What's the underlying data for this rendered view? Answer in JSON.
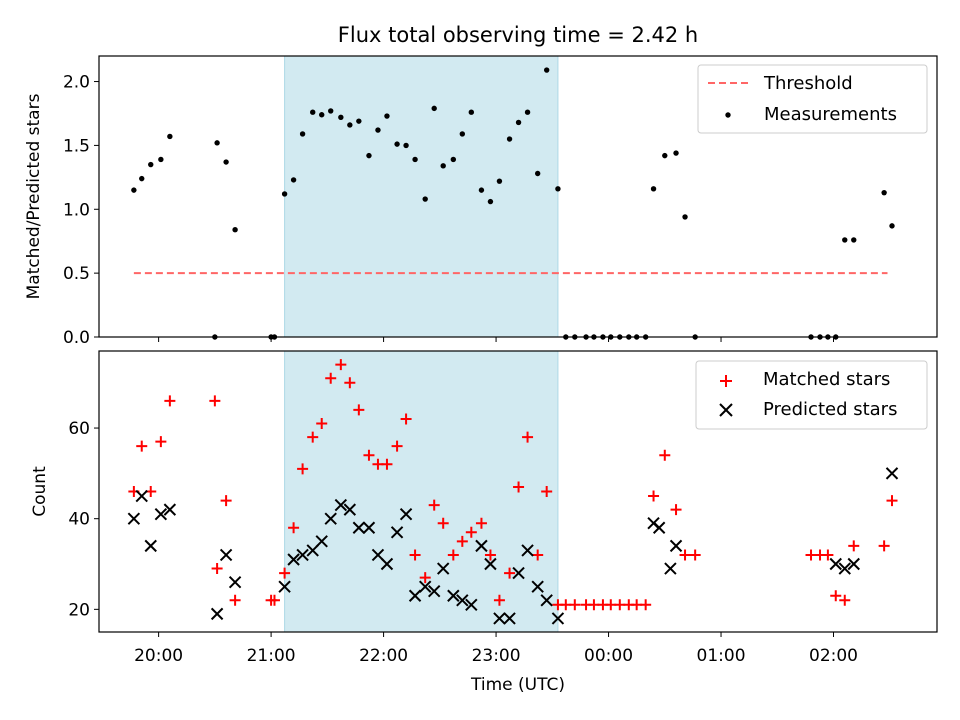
{
  "chart_data": [
    {
      "type": "scatter",
      "title": "Flux total observing time = 2.42 h",
      "xlabel": "",
      "ylabel": "Matched/Predicted stars",
      "xlim": [
        19.47,
        26.92
      ],
      "ylim": [
        0,
        2.2
      ],
      "yticks": [
        0.0,
        0.5,
        1.0,
        1.5,
        2.0
      ],
      "yticklabels": [
        "0.0",
        "0.5",
        "1.0",
        "1.5",
        "2.0"
      ],
      "shaded_interval": [
        21.12,
        23.55
      ],
      "shade_color": "#add8e6",
      "legend": {
        "position": "top-right",
        "threshold_label": "Threshold",
        "measurements_label": "Measurements"
      },
      "threshold": {
        "name": "Threshold",
        "x": [
          19.78,
          26.48
        ],
        "y": 0.5,
        "color": "#ff6666",
        "style": "dashed"
      },
      "measurements": {
        "name": "Measurements",
        "color": "#000000",
        "x": [
          19.78,
          19.85,
          19.93,
          20.02,
          20.1,
          20.5,
          20.52,
          20.6,
          20.68,
          21.0,
          21.03,
          21.12,
          21.2,
          21.28,
          21.37,
          21.45,
          21.53,
          21.62,
          21.7,
          21.78,
          21.87,
          21.95,
          22.03,
          22.12,
          22.2,
          22.28,
          22.37,
          22.45,
          22.53,
          22.62,
          22.7,
          22.78,
          22.87,
          22.95,
          23.03,
          23.12,
          23.2,
          23.28,
          23.37,
          23.45,
          23.55,
          23.62,
          23.7,
          23.8,
          23.87,
          23.95,
          24.02,
          24.1,
          24.18,
          24.25,
          24.33,
          24.4,
          24.5,
          24.6,
          24.68,
          24.77,
          25.8,
          25.88,
          25.95,
          26.02,
          26.1,
          26.18,
          26.45,
          26.52
        ],
        "y": [
          1.15,
          1.24,
          1.35,
          1.39,
          1.57,
          0.0,
          1.52,
          1.37,
          0.84,
          0.0,
          0.0,
          1.12,
          1.23,
          1.59,
          1.76,
          1.74,
          1.77,
          1.72,
          1.66,
          1.69,
          1.42,
          1.62,
          1.73,
          1.51,
          1.5,
          1.39,
          1.08,
          1.79,
          1.34,
          1.39,
          1.59,
          1.76,
          1.15,
          1.06,
          1.22,
          1.55,
          1.68,
          1.76,
          1.28,
          2.09,
          1.16,
          0.0,
          0.0,
          0.0,
          0.0,
          0.0,
          0.0,
          0.0,
          0.0,
          0.0,
          0.0,
          1.16,
          1.42,
          1.44,
          0.94,
          0.0,
          0.0,
          0.0,
          0.0,
          0.0,
          0.76,
          0.76,
          1.13,
          0.87
        ]
      }
    },
    {
      "type": "scatter",
      "title": "",
      "xlabel": "Time (UTC)",
      "ylabel": "Count",
      "xlim": [
        19.47,
        26.92
      ],
      "ylim": [
        15,
        77
      ],
      "yticks": [
        20,
        40,
        60
      ],
      "yticklabels": [
        "20",
        "40",
        "60"
      ],
      "xticks": [
        20,
        21,
        22,
        23,
        24,
        25,
        26
      ],
      "xticklabels": [
        "20:00",
        "21:00",
        "22:00",
        "23:00",
        "00:00",
        "01:00",
        "02:00"
      ],
      "shaded_interval": [
        21.12,
        23.55
      ],
      "shade_color": "#add8e6",
      "legend": {
        "position": "top-right",
        "matched_label": "Matched stars",
        "predicted_label": "Predicted stars"
      },
      "matched": {
        "name": "Matched stars",
        "color": "#ff0000",
        "x": [
          19.78,
          19.85,
          19.93,
          20.02,
          20.1,
          20.5,
          20.52,
          20.6,
          20.68,
          21.0,
          21.03,
          21.12,
          21.2,
          21.28,
          21.37,
          21.45,
          21.53,
          21.62,
          21.7,
          21.78,
          21.87,
          21.95,
          22.03,
          22.12,
          22.2,
          22.28,
          22.37,
          22.45,
          22.53,
          22.62,
          22.7,
          22.78,
          22.87,
          22.95,
          23.03,
          23.12,
          23.2,
          23.28,
          23.37,
          23.45,
          23.55,
          23.62,
          23.7,
          23.8,
          23.87,
          23.95,
          24.02,
          24.1,
          24.18,
          24.25,
          24.33,
          24.4,
          24.5,
          24.6,
          24.68,
          24.77,
          25.8,
          25.88,
          25.95,
          26.02,
          26.1,
          26.18,
          26.45,
          26.52
        ],
        "y": [
          46,
          56,
          46,
          57,
          66,
          66,
          29,
          44,
          22,
          22,
          22,
          28,
          38,
          51,
          58,
          61,
          71,
          74,
          70,
          64,
          54,
          52,
          52,
          56,
          62,
          32,
          27,
          43,
          39,
          32,
          35,
          37,
          39,
          32,
          22,
          28,
          47,
          58,
          32,
          46,
          21,
          21,
          21,
          21,
          21,
          21,
          21,
          21,
          21,
          21,
          21,
          45,
          54,
          42,
          32,
          32,
          32,
          32,
          32,
          23,
          22,
          34,
          34,
          44
        ]
      },
      "predicted": {
        "name": "Predicted stars",
        "color": "#000000",
        "x": [
          19.78,
          19.85,
          19.93,
          20.02,
          20.1,
          20.52,
          20.6,
          20.68,
          21.12,
          21.2,
          21.28,
          21.37,
          21.45,
          21.53,
          21.62,
          21.7,
          21.78,
          21.87,
          21.95,
          22.03,
          22.12,
          22.2,
          22.28,
          22.37,
          22.45,
          22.53,
          22.62,
          22.7,
          22.78,
          22.87,
          22.95,
          23.03,
          23.12,
          23.2,
          23.28,
          23.37,
          23.45,
          23.55,
          24.4,
          24.45,
          24.55,
          24.6,
          26.02,
          26.1,
          26.18,
          26.52
        ],
        "y": [
          40,
          45,
          34,
          41,
          42,
          19,
          32,
          26,
          25,
          31,
          32,
          33,
          35,
          40,
          43,
          42,
          38,
          38,
          32,
          30,
          37,
          41,
          23,
          25,
          24,
          29,
          23,
          22,
          21,
          34,
          30,
          18,
          18,
          28,
          33,
          25,
          22,
          18,
          39,
          38,
          29,
          34,
          30,
          29,
          30,
          50
        ]
      }
    }
  ]
}
